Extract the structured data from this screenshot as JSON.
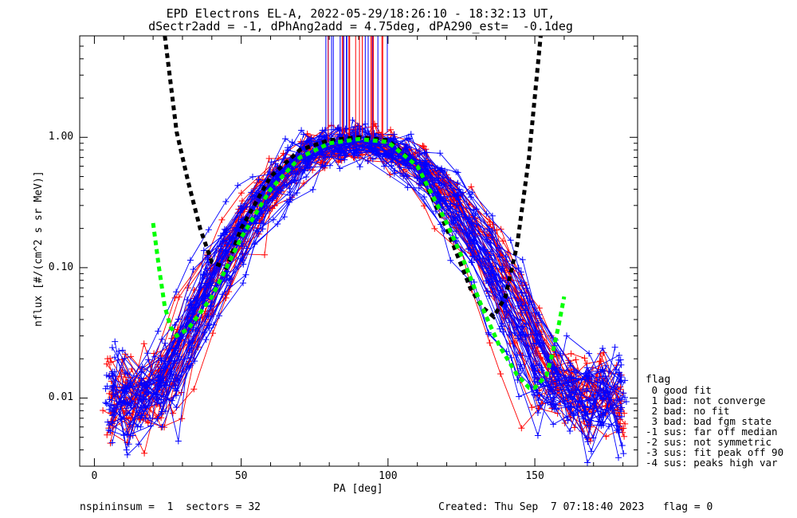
{
  "title_line1": "EPD Electrons EL-A, 2022-05-29/18:26:10 - 18:32:13 UT,",
  "title_line2": "dSectr2add = -1, dPhAng2add = 4.75deg, dPA290_est=  -0.1deg",
  "footer_left": "nspininsum =  1  sectors = 32",
  "footer_right": "Created: Thu Sep  7 07:18:40 2023   flag = 0",
  "legend": {
    "title": "flag",
    "items": [
      " 0 good fit",
      " 1 bad: not converge",
      " 2 bad: no fit",
      " 3 bad: bad fgm state",
      "-1 sus: far off median",
      "-2 sus: not symmetric",
      "-3 sus: fit peak off 90",
      "-4 sus: peaks high var"
    ]
  },
  "chart_data": {
    "type": "line",
    "xlabel": "PA [deg]",
    "ylabel": "nflux [#/(cm^2 s sr MeV)]",
    "xlim": [
      -5,
      185
    ],
    "ylim": [
      0.003,
      6.0
    ],
    "yscale": "log",
    "x_ticks": [
      0,
      50,
      100,
      150
    ],
    "x_tick_labels": [
      "0",
      "50",
      "100",
      "150"
    ],
    "y_ticks": [
      0.01,
      0.1,
      1.0
    ],
    "y_tick_labels": [
      "0.01",
      "0.10",
      "1.00"
    ],
    "colors": {
      "series_a": "#ff0000",
      "series_b": "#0000ff",
      "fit_90": "#000000",
      "fit_sym": "#00ff00"
    },
    "n_series_a": 30,
    "n_series_b": 40,
    "fits": [
      {
        "name": "black dashed fit",
        "color": "#000000",
        "x": [
          24,
          28,
          32,
          36,
          40,
          45,
          50,
          60,
          70,
          80,
          90,
          100,
          110,
          120,
          128,
          132,
          136,
          140,
          144,
          148,
          152
        ],
        "y": [
          6.0,
          1.1,
          0.45,
          0.2,
          0.11,
          0.1,
          0.2,
          0.5,
          0.8,
          0.95,
          1.0,
          0.95,
          0.6,
          0.2,
          0.07,
          0.05,
          0.042,
          0.06,
          0.15,
          0.7,
          6.0
        ]
      },
      {
        "name": "green dashed fit",
        "color": "#00ff00",
        "x": [
          20,
          22,
          24,
          26,
          28,
          32,
          36,
          40,
          45,
          50,
          60,
          70,
          80,
          90,
          100,
          110,
          120,
          126,
          132,
          138,
          144,
          148,
          150,
          154,
          156,
          158,
          160
        ],
        "y": [
          0.22,
          0.1,
          0.05,
          0.035,
          0.03,
          0.034,
          0.045,
          0.06,
          0.1,
          0.17,
          0.4,
          0.7,
          0.9,
          0.97,
          0.92,
          0.6,
          0.22,
          0.11,
          0.05,
          0.025,
          0.015,
          0.012,
          0.012,
          0.015,
          0.022,
          0.035,
          0.06
        ]
      }
    ]
  }
}
